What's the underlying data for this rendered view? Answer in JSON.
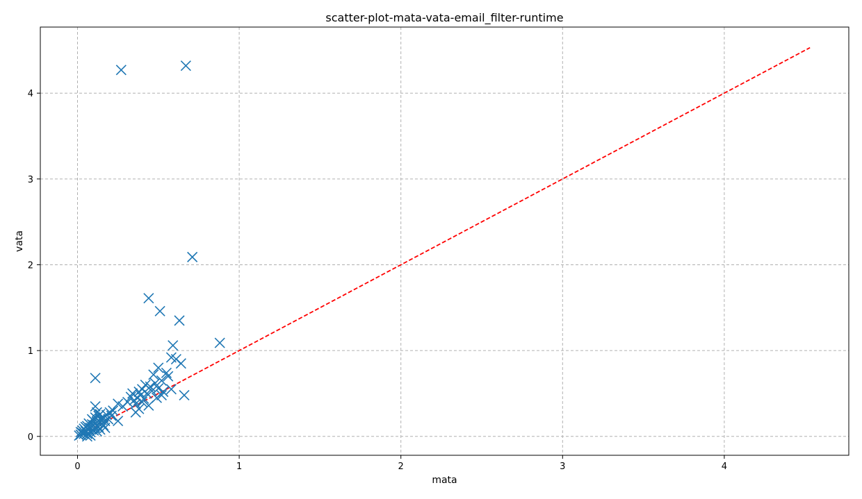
{
  "chart_data": {
    "type": "scatter",
    "title": "scatter-plot-mata-vata-email_filter-runtime",
    "xlabel": "mata",
    "ylabel": "vata",
    "xlim": [
      -0.23,
      4.77
    ],
    "ylim": [
      -0.22,
      4.77
    ],
    "xticks": [
      0,
      1,
      2,
      3,
      4
    ],
    "yticks": [
      0,
      1,
      2,
      3,
      4
    ],
    "grid": true,
    "marker": "x",
    "series": [
      {
        "color": "#1f77b4",
        "points": [
          [
            0.27,
            4.27
          ],
          [
            0.67,
            4.32
          ],
          [
            0.71,
            2.09
          ],
          [
            0.44,
            1.61
          ],
          [
            0.51,
            1.46
          ],
          [
            0.63,
            1.35
          ],
          [
            0.88,
            1.09
          ],
          [
            0.59,
            1.06
          ],
          [
            0.11,
            0.68
          ],
          [
            0.58,
            0.92
          ],
          [
            0.61,
            0.9
          ],
          [
            0.64,
            0.85
          ],
          [
            0.66,
            0.48
          ],
          [
            0.5,
            0.8
          ],
          [
            0.47,
            0.72
          ],
          [
            0.55,
            0.74
          ],
          [
            0.56,
            0.7
          ],
          [
            0.52,
            0.65
          ],
          [
            0.48,
            0.62
          ],
          [
            0.45,
            0.58
          ],
          [
            0.42,
            0.6
          ],
          [
            0.4,
            0.55
          ],
          [
            0.38,
            0.52
          ],
          [
            0.43,
            0.5
          ],
          [
            0.46,
            0.53
          ],
          [
            0.5,
            0.56
          ],
          [
            0.53,
            0.52
          ],
          [
            0.49,
            0.45
          ],
          [
            0.52,
            0.48
          ],
          [
            0.58,
            0.55
          ],
          [
            0.39,
            0.48
          ],
          [
            0.37,
            0.45
          ],
          [
            0.35,
            0.42
          ],
          [
            0.33,
            0.46
          ],
          [
            0.36,
            0.38
          ],
          [
            0.4,
            0.4
          ],
          [
            0.44,
            0.36
          ],
          [
            0.38,
            0.32
          ],
          [
            0.36,
            0.28
          ],
          [
            0.41,
            0.44
          ],
          [
            0.34,
            0.5
          ],
          [
            0.31,
            0.4
          ],
          [
            0.28,
            0.35
          ],
          [
            0.25,
            0.38
          ],
          [
            0.25,
            0.18
          ],
          [
            0.22,
            0.3
          ],
          [
            0.2,
            0.28
          ],
          [
            0.18,
            0.25
          ],
          [
            0.16,
            0.22
          ],
          [
            0.17,
            0.18
          ],
          [
            0.14,
            0.2
          ],
          [
            0.11,
            0.35
          ],
          [
            0.12,
            0.28
          ],
          [
            0.13,
            0.24
          ],
          [
            0.15,
            0.15
          ],
          [
            0.12,
            0.12
          ],
          [
            0.1,
            0.18
          ],
          [
            0.09,
            0.14
          ],
          [
            0.11,
            0.1
          ],
          [
            0.14,
            0.08
          ],
          [
            0.08,
            0.1
          ],
          [
            0.07,
            0.08
          ],
          [
            0.06,
            0.12
          ],
          [
            0.05,
            0.06
          ],
          [
            0.04,
            0.09
          ],
          [
            0.03,
            0.04
          ],
          [
            0.02,
            0.02
          ],
          [
            0.01,
            0.01
          ],
          [
            0.06,
            0.03
          ],
          [
            0.08,
            0.05
          ],
          [
            0.1,
            0.07
          ],
          [
            0.13,
            0.11
          ],
          [
            0.16,
            0.13
          ],
          [
            0.19,
            0.2
          ],
          [
            0.21,
            0.24
          ],
          [
            0.07,
            0.15
          ],
          [
            0.05,
            0.11
          ],
          [
            0.09,
            0.2
          ],
          [
            0.12,
            0.17
          ],
          [
            0.15,
            0.19
          ],
          [
            0.03,
            0.07
          ],
          [
            0.04,
            0.03
          ],
          [
            0.02,
            0.05
          ],
          [
            0.1,
            0.13
          ],
          [
            0.12,
            0.06
          ],
          [
            0.17,
            0.1
          ],
          [
            0.08,
            0.01
          ],
          [
            0.06,
            0.0
          ],
          [
            0.11,
            0.22
          ],
          [
            0.14,
            0.26
          ]
        ]
      }
    ],
    "reference_line": {
      "style": "dashed",
      "color": "#ff0000",
      "from": [
        0,
        0
      ],
      "to": [
        4.53,
        4.53
      ]
    }
  }
}
